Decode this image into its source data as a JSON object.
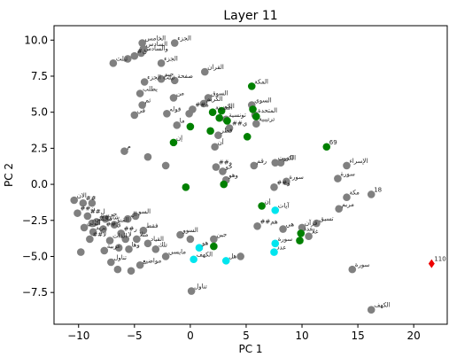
{
  "chart_data": {
    "type": "scatter",
    "title": "Layer 11",
    "xlabel": "PC 1",
    "ylabel": "PC 2",
    "xlim": [
      -12.2,
      23
    ],
    "ylim": [
      -9.7,
      11
    ],
    "xticks": [
      "−10",
      "−5",
      "0",
      "5",
      "10",
      "15",
      "20"
    ],
    "xtick_values": [
      -10,
      -5,
      0,
      5,
      10,
      15,
      20
    ],
    "yticks": [
      "10.0",
      "7.5",
      "5.0",
      "2.5",
      "0.0",
      "−2.5",
      "−5.0",
      "−7.5"
    ],
    "ytick_values": [
      10,
      7.5,
      5,
      2.5,
      0,
      -2.5,
      -5,
      -7.5
    ],
    "colors": {
      "gray": "#808080",
      "green": "#008000",
      "cyan": "#00e5ee",
      "red": "#ee0000"
    },
    "points": [
      {
        "x": -4.3,
        "y": 9.8,
        "c": "gray",
        "label": "الخامس"
      },
      {
        "x": -4.2,
        "y": 9.4,
        "c": "gray",
        "label": "السادس"
      },
      {
        "x": -4.4,
        "y": 9.1,
        "c": "gray",
        "label": "والسادس"
      },
      {
        "x": -1.4,
        "y": 9.8,
        "c": "gray",
        "label": "الجزء"
      },
      {
        "x": -5.0,
        "y": 8.9,
        "c": "gray",
        "label": "#ن"
      },
      {
        "x": -5.6,
        "y": 8.7,
        "c": "gray",
        "label": ""
      },
      {
        "x": -6.9,
        "y": 8.4,
        "c": "gray",
        "label": "ثيلث"
      },
      {
        "x": -2.6,
        "y": 8.4,
        "c": "gray",
        "label": "الجزء"
      },
      {
        "x": 1.3,
        "y": 7.8,
        "c": "gray",
        "label": "القران"
      },
      {
        "x": -1.4,
        "y": 7.2,
        "c": "gray",
        "label": "صفحة"
      },
      {
        "x": -4.1,
        "y": 7.1,
        "c": "gray",
        "label": "ثيلث الجزء"
      },
      {
        "x": -2.6,
        "y": 7.3,
        "c": "gray",
        "label": "جيم"
      },
      {
        "x": -4.5,
        "y": 6.3,
        "c": "gray",
        "label": "يطلب"
      },
      {
        "x": -4.3,
        "y": 5.5,
        "c": "gray",
        "label": "ثم"
      },
      {
        "x": -1.5,
        "y": 6.0,
        "c": "gray",
        "label": "من"
      },
      {
        "x": -5.0,
        "y": 4.8,
        "c": "gray",
        "label": "في"
      },
      {
        "x": -2.1,
        "y": 4.9,
        "c": "gray",
        "label": "قوله"
      },
      {
        "x": -0.1,
        "y": 4.9,
        "c": "gray",
        "label": ""
      },
      {
        "x": 1.6,
        "y": 6.0,
        "c": "gray",
        "label": "السوق"
      },
      {
        "x": 1.2,
        "y": 5.6,
        "c": "gray",
        "label": "الكريم"
      },
      {
        "x": 0.2,
        "y": 5.2,
        "c": "gray",
        "label": "##ه"
      },
      {
        "x": -1.2,
        "y": 4.1,
        "c": "gray",
        "label": "ما"
      },
      {
        "x": 3.2,
        "y": 4.5,
        "c": "gray",
        "label": "تونسية"
      },
      {
        "x": 3.5,
        "y": 3.9,
        "c": "gray",
        "label": "##ي"
      },
      {
        "x": 2.5,
        "y": 3.4,
        "c": "gray",
        "label": "قطر"
      },
      {
        "x": 5.9,
        "y": 4.2,
        "c": "gray",
        "label": "ترتيبية"
      },
      {
        "x": 5.5,
        "y": 5.5,
        "c": "gray",
        "label": "السوي"
      },
      {
        "x": 5.8,
        "y": 4.8,
        "c": "gray",
        "label": "المتحدة"
      },
      {
        "x": 2.2,
        "y": 2.6,
        "c": "gray",
        "label": "أن"
      },
      {
        "x": -5.9,
        "y": 2.3,
        "c": "gray",
        "label": "م"
      },
      {
        "x": -3.8,
        "y": 1.9,
        "c": "gray",
        "label": ""
      },
      {
        "x": -2.2,
        "y": 1.3,
        "c": "gray",
        "label": ""
      },
      {
        "x": 2.3,
        "y": 1.2,
        "c": "gray",
        "label": "##و"
      },
      {
        "x": 5.7,
        "y": 1.3,
        "c": "gray",
        "label": "رقم"
      },
      {
        "x": 2.9,
        "y": 0.9,
        "c": "gray",
        "label": "خو"
      },
      {
        "x": 3.2,
        "y": 0.3,
        "c": "gray",
        "label": "وهو"
      },
      {
        "x": 7.6,
        "y": 1.5,
        "c": "gray",
        "label": "الكويت"
      },
      {
        "x": 8.1,
        "y": 1.5,
        "c": "gray",
        "label": "الدو"
      },
      {
        "x": 14.0,
        "y": 1.3,
        "c": "gray",
        "label": "الإسراء"
      },
      {
        "x": 13.2,
        "y": 0.4,
        "c": "gray",
        "label": "سورة"
      },
      {
        "x": 8.6,
        "y": 0.2,
        "c": "gray",
        "label": "سورة"
      },
      {
        "x": 7.5,
        "y": -0.2,
        "c": "gray",
        "label": "##و"
      },
      {
        "x": 16.2,
        "y": -0.7,
        "c": "gray",
        "label": "18"
      },
      {
        "x": 14.0,
        "y": -0.9,
        "c": "gray",
        "label": "مكة"
      },
      {
        "x": 13.3,
        "y": -1.7,
        "c": "gray",
        "label": "مريم"
      },
      {
        "x": -10.4,
        "y": -1.1,
        "c": "gray",
        "label": "الان"
      },
      {
        "x": -9.6,
        "y": -1.3,
        "c": "gray",
        "label": "##"
      },
      {
        "x": -10.1,
        "y": -2.0,
        "c": "gray",
        "label": "##ن"
      },
      {
        "x": -8.8,
        "y": -1.3,
        "c": "gray",
        "label": ""
      },
      {
        "x": -9.2,
        "y": -2.2,
        "c": "gray",
        "label": "##ل"
      },
      {
        "x": -8.8,
        "y": -2.7,
        "c": "gray",
        "label": "مجلس"
      },
      {
        "x": -8.4,
        "y": -2.6,
        "c": "gray",
        "label": "##شاو"
      },
      {
        "x": -9.5,
        "y": -3.0,
        "c": "gray",
        "label": "الولي"
      },
      {
        "x": -8.7,
        "y": -3.3,
        "c": "gray",
        "label": "يزيد"
      },
      {
        "x": -7.8,
        "y": -3.1,
        "c": "gray",
        "label": "##ي"
      },
      {
        "x": -9.0,
        "y": -3.8,
        "c": "gray",
        "label": "##لا"
      },
      {
        "x": -7.6,
        "y": -2.4,
        "c": "gray",
        "label": "جي"
      },
      {
        "x": -6.8,
        "y": -2.8,
        "c": "gray",
        "label": "القنو"
      },
      {
        "x": -5.6,
        "y": -2.4,
        "c": "gray",
        "label": "ال"
      },
      {
        "x": -4.9,
        "y": -2.2,
        "c": "gray",
        "label": "السو"
      },
      {
        "x": -6.2,
        "y": -3.4,
        "c": "gray",
        "label": "##ر"
      },
      {
        "x": -5.8,
        "y": -3.8,
        "c": "gray",
        "label": "لا"
      },
      {
        "x": -4.8,
        "y": -3.8,
        "c": "gray",
        "label": "مثلا"
      },
      {
        "x": -4.2,
        "y": -3.2,
        "c": "gray",
        "label": "فقط"
      },
      {
        "x": -7.2,
        "y": -3.9,
        "c": "gray",
        "label": "الذات"
      },
      {
        "x": -7.7,
        "y": -4.6,
        "c": "gray",
        "label": "عربية"
      },
      {
        "x": -9.8,
        "y": -4.7,
        "c": "gray",
        "label": ""
      },
      {
        "x": -3.8,
        "y": -4.1,
        "c": "gray",
        "label": "القياد"
      },
      {
        "x": -5.5,
        "y": -4.5,
        "c": "gray",
        "label": "وها"
      },
      {
        "x": -6.4,
        "y": -4.4,
        "c": "gray",
        "label": ""
      },
      {
        "x": -3.1,
        "y": -4.5,
        "c": "gray",
        "label": "تلك"
      },
      {
        "x": -0.9,
        "y": -3.5,
        "c": "gray",
        "label": "السوو"
      },
      {
        "x": 0.0,
        "y": -3.8,
        "c": "gray",
        "label": ""
      },
      {
        "x": 2.1,
        "y": -3.8,
        "c": "gray",
        "label": "جين"
      },
      {
        "x": -2.2,
        "y": -5.0,
        "c": "gray",
        "label": "مايسي"
      },
      {
        "x": -7.1,
        "y": -5.4,
        "c": "gray",
        "label": "تناول"
      },
      {
        "x": -6.5,
        "y": -5.9,
        "c": "gray",
        "label": ""
      },
      {
        "x": -4.5,
        "y": -5.6,
        "c": "gray",
        "label": "مواضيع"
      },
      {
        "x": -5.3,
        "y": -6.0,
        "c": "gray",
        "label": ""
      },
      {
        "x": 4.5,
        "y": -5.0,
        "c": "gray",
        "label": ""
      },
      {
        "x": 0.1,
        "y": -7.4,
        "c": "gray",
        "label": "تناول"
      },
      {
        "x": 6.0,
        "y": -2.9,
        "c": "gray",
        "label": "##هم"
      },
      {
        "x": 10.0,
        "y": -3.0,
        "c": "gray",
        "label": "قرآن"
      },
      {
        "x": 11.3,
        "y": -2.7,
        "c": "gray",
        "label": "تسيق"
      },
      {
        "x": 10.6,
        "y": -3.6,
        "c": "gray",
        "label": "غلا"
      },
      {
        "x": 8.3,
        "y": -3.1,
        "c": "gray",
        "label": "هي"
      },
      {
        "x": 14.5,
        "y": -5.9,
        "c": "gray",
        "label": "سورة"
      },
      {
        "x": 16.2,
        "y": -8.7,
        "c": "gray",
        "label": "الكهف"
      },
      {
        "x": 5.5,
        "y": 6.8,
        "c": "green",
        "label": "المكة"
      },
      {
        "x": 2.0,
        "y": 5.0,
        "c": "green",
        "label": "المدينة"
      },
      {
        "x": 2.8,
        "y": 5.1,
        "c": "green",
        "label": "الكو"
      },
      {
        "x": 2.6,
        "y": 4.6,
        "c": "green",
        "label": ""
      },
      {
        "x": 3.3,
        "y": 4.4,
        "c": "green",
        "label": ""
      },
      {
        "x": 5.6,
        "y": 5.2,
        "c": "green",
        "label": ""
      },
      {
        "x": 5.9,
        "y": 4.7,
        "c": "green",
        "label": ""
      },
      {
        "x": 0.0,
        "y": 4.0,
        "c": "green",
        "label": ""
      },
      {
        "x": 1.8,
        "y": 3.7,
        "c": "green",
        "label": ""
      },
      {
        "x": 5.1,
        "y": 3.3,
        "c": "green",
        "label": ""
      },
      {
        "x": -1.5,
        "y": 2.9,
        "c": "green",
        "label": "إن"
      },
      {
        "x": 3.0,
        "y": 0.0,
        "c": "green",
        "label": ""
      },
      {
        "x": -0.4,
        "y": -0.2,
        "c": "green",
        "label": ""
      },
      {
        "x": 6.4,
        "y": -1.5,
        "c": "green",
        "label": "إن"
      },
      {
        "x": 2.1,
        "y": -4.3,
        "c": "green",
        "label": ""
      },
      {
        "x": 9.9,
        "y": -3.4,
        "c": "green",
        "label": "عدد"
      },
      {
        "x": 9.8,
        "y": -3.9,
        "c": "green",
        "label": ""
      },
      {
        "x": 12.2,
        "y": 2.6,
        "c": "green",
        "label": "69"
      },
      {
        "x": 7.6,
        "y": -1.8,
        "c": "cyan",
        "label": "آيات"
      },
      {
        "x": 7.6,
        "y": -4.1,
        "c": "cyan",
        "label": "سورة"
      },
      {
        "x": 7.5,
        "y": -4.7,
        "c": "cyan",
        "label": "عدد"
      },
      {
        "x": 0.8,
        "y": -4.4,
        "c": "cyan",
        "label": "هو"
      },
      {
        "x": 0.3,
        "y": -5.2,
        "c": "cyan",
        "label": "الكهف"
      },
      {
        "x": 3.2,
        "y": -5.3,
        "c": "cyan",
        "label": "هل"
      },
      {
        "x": 21.6,
        "y": -5.5,
        "c": "red",
        "marker": "diamond",
        "label": "110"
      }
    ]
  }
}
